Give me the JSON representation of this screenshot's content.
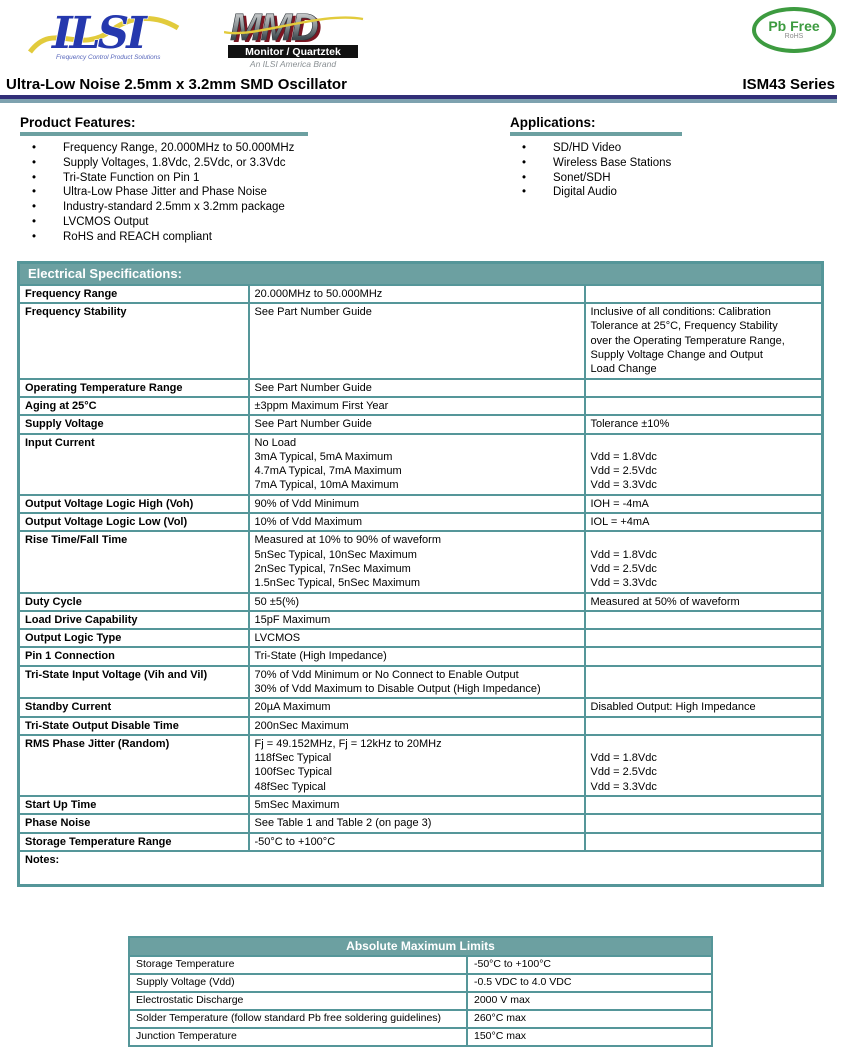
{
  "header": {
    "ilsi_logo": {
      "text": "ILSI",
      "tagline": "Frequency Control Product Solutions"
    },
    "mmd_logo": {
      "text": "MMD",
      "subtitle": "Monitor / Quartztek",
      "tagline": "An ILSI America Brand"
    },
    "pb_free": {
      "line1": "Pb Free",
      "line2": "RoHS"
    },
    "title": "Ultra-Low Noise 2.5mm x 3.2mm SMD Oscillator",
    "series": "ISM43 Series"
  },
  "features": {
    "heading": "Product Features:",
    "items": [
      "Frequency Range, 20.000MHz to 50.000MHz",
      "Supply Voltages, 1.8Vdc, 2.5Vdc, or 3.3Vdc",
      "Tri-State Function on Pin 1",
      "Ultra-Low Phase Jitter and Phase Noise",
      "Industry-standard 2.5mm x 3.2mm package",
      "LVCMOS Output",
      "RoHS and REACH compliant"
    ]
  },
  "applications": {
    "heading": "Applications:",
    "items": [
      "SD/HD Video",
      "Wireless Base Stations",
      "Sonet/SDH",
      "Digital Audio"
    ]
  },
  "electrical": {
    "heading": "Electrical Specifications:",
    "rows": [
      {
        "param": "Frequency Range",
        "value": "20.000MHz to 50.000MHz",
        "notes": ""
      },
      {
        "param": "Frequency Stability",
        "value": "See Part Number Guide",
        "notes": [
          "Inclusive of all conditions: Calibration",
          "Tolerance at 25°C, Frequency Stability",
          "over the Operating Temperature Range,",
          "Supply Voltage Change and Output",
          "Load Change"
        ]
      },
      {
        "param": "Operating Temperature Range",
        "value": "See Part Number Guide",
        "notes": ""
      },
      {
        "param": "Aging at 25°C",
        "value": "±3ppm Maximum First Year",
        "notes": ""
      },
      {
        "param": "Supply Voltage",
        "value": "See Part Number Guide",
        "notes": "Tolerance ±10%"
      },
      {
        "param": "Input Current",
        "value": [
          "No Load",
          "3mA Typical, 5mA Maximum",
          "4.7mA Typical, 7mA Maximum",
          "7mA Typical, 10mA Maximum"
        ],
        "notes": [
          " ",
          "Vdd = 1.8Vdc",
          "Vdd = 2.5Vdc",
          "Vdd = 3.3Vdc"
        ]
      },
      {
        "param": "Output Voltage Logic High (Voh)",
        "value": "90% of Vdd Minimum",
        "notes": "IOH = -4mA"
      },
      {
        "param": "Output Voltage Logic Low (Vol)",
        "value": "10% of Vdd Maximum",
        "notes": "IOL = +4mA"
      },
      {
        "param": "Rise Time/Fall Time",
        "value": [
          "Measured at 10% to 90% of waveform",
          "5nSec Typical, 10nSec Maximum",
          "2nSec Typical, 7nSec Maximum",
          "1.5nSec Typical, 5nSec Maximum"
        ],
        "notes": [
          " ",
          "Vdd = 1.8Vdc",
          "Vdd = 2.5Vdc",
          "Vdd = 3.3Vdc"
        ]
      },
      {
        "param": "Duty Cycle",
        "value": "50 ±5(%)",
        "notes": "Measured at 50% of waveform"
      },
      {
        "param": "Load Drive Capability",
        "value": "15pF Maximum",
        "notes": ""
      },
      {
        "param": "Output Logic Type",
        "value": "LVCMOS",
        "notes": ""
      },
      {
        "param": "Pin 1 Connection",
        "value": "Tri-State (High Impedance)",
        "notes": ""
      },
      {
        "param": "Tri-State Input Voltage (Vih and Vil)",
        "value": [
          "70% of Vdd Minimum or No Connect to Enable Output",
          "30% of Vdd Maximum to Disable Output (High Impedance)"
        ],
        "notes": ""
      },
      {
        "param": "Standby Current",
        "value": "20µA Maximum",
        "notes": "Disabled Output: High Impedance"
      },
      {
        "param": "Tri-State Output Disable Time",
        "value": "200nSec Maximum",
        "notes": ""
      },
      {
        "param": "RMS Phase Jitter (Random)",
        "value": [
          "Fj = 49.152MHz, Fj = 12kHz to 20MHz",
          "118fSec Typical",
          "100fSec Typical",
          "48fSec Typical"
        ],
        "notes": [
          " ",
          "Vdd = 1.8Vdc",
          "Vdd = 2.5Vdc",
          "Vdd = 3.3Vdc"
        ]
      },
      {
        "param": "Start Up Time",
        "value": "5mSec Maximum",
        "notes": ""
      },
      {
        "param": "Phase Noise",
        "value": "See Table 1 and Table 2 (on page 3)",
        "notes": ""
      },
      {
        "param": "Storage Temperature Range",
        "value": "-50°C to +100°C",
        "notes": ""
      },
      {
        "span": true,
        "param": "Notes:"
      }
    ]
  },
  "abs_max": {
    "heading": "Absolute Maximum Limits",
    "rows": [
      {
        "param": "Storage Temperature",
        "value": "-50°C to +100°C"
      },
      {
        "param": "Supply Voltage (Vdd)",
        "value": "-0.5 VDC to 4.0 VDC"
      },
      {
        "param": "Electrostatic Discharge",
        "value": "2000 V max"
      },
      {
        "param": "Solder Temperature (follow standard Pb free soldering guidelines)",
        "value": "260°C max"
      },
      {
        "param": "Junction Temperature",
        "value": "150°C max"
      }
    ]
  },
  "colors": {
    "teal_band": "#6ca0a1",
    "teal_border": "#559699",
    "navy_rule": "#312e77",
    "steel_rule": "#7ea2af",
    "ilsi_blue": "#2538ae",
    "logo_yellow": "#e2cb3c",
    "mmd_maroon": "#7c1622",
    "pb_green": "#3d9b40"
  }
}
